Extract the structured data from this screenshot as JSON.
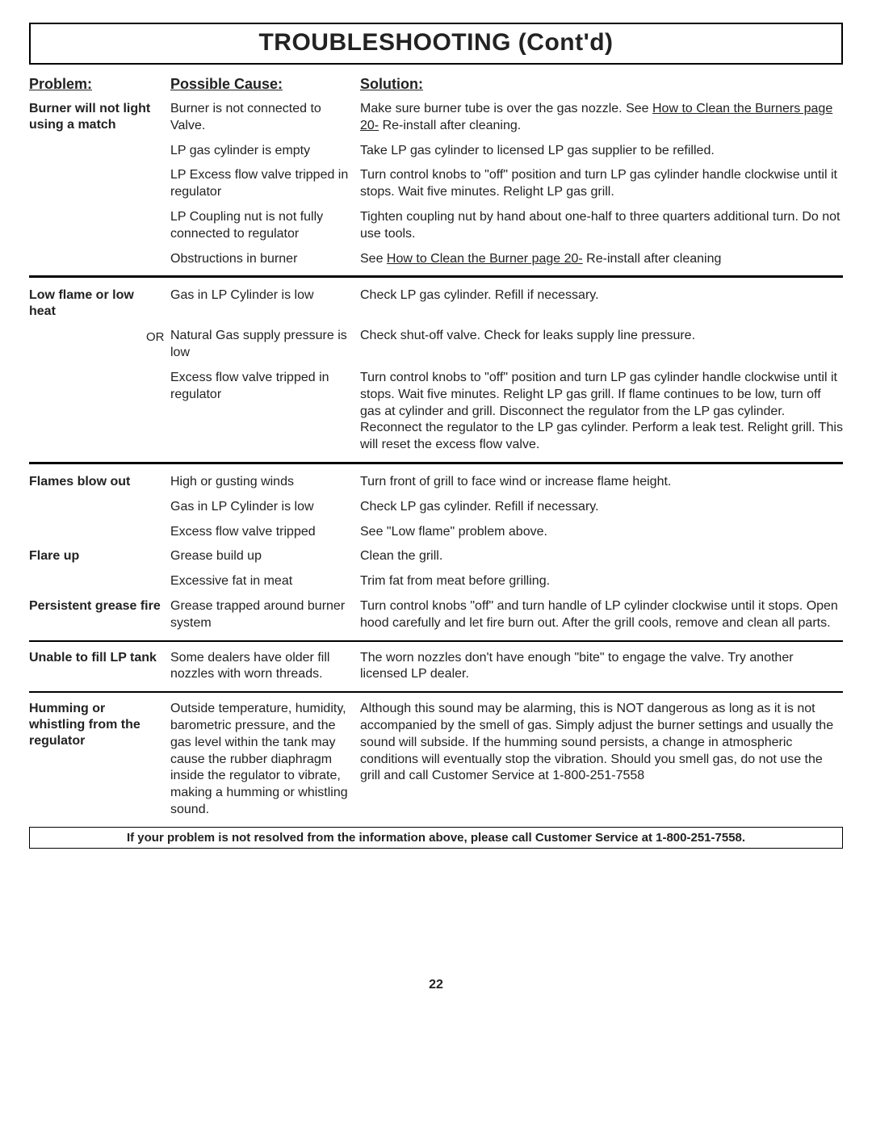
{
  "title": "TROUBLESHOOTING (Cont'd)",
  "headers": {
    "problem": "Problem:",
    "cause": "Possible Cause:",
    "solution": "Solution:"
  },
  "footer": "If your problem is not resolved from the information above, please call Customer Service at 1-800-251-7558.",
  "page_number": "22",
  "colors": {
    "text": "#222222",
    "border": "#000000",
    "background": "#ffffff"
  },
  "sections": [
    {
      "problem": "Burner will not light using a match",
      "divider_after": "thick",
      "rows": [
        {
          "cause": "Burner is not connected to Valve.",
          "solution_pre": "Make sure burner tube is over the gas nozzle. See ",
          "solution_link": "How to Clean the Burners page 20-",
          "solution_post": " Re-install after cleaning."
        },
        {
          "cause": "LP gas cylinder is empty",
          "solution": "Take LP gas cylinder to licensed LP gas supplier to be refilled."
        },
        {
          "cause": "LP Excess flow valve tripped in regulator",
          "solution": "Turn control knobs to \"off\" position and turn LP gas cylinder handle clockwise until it stops.  Wait five minutes.  Relight LP gas grill."
        },
        {
          "cause": "LP Coupling nut is not fully connected to regulator",
          "solution": "Tighten coupling nut by hand about one-half to three quarters additional turn. Do not use tools."
        },
        {
          "cause": "Obstructions in burner",
          "solution_pre": "See ",
          "solution_link": "How to Clean the Burner page 20-",
          "solution_post": " Re-install after cleaning"
        }
      ]
    },
    {
      "problem": "Low  flame\nor low  heat",
      "divider_after": "thick",
      "rows": [
        {
          "cause": "Gas in LP Cylinder is low",
          "solution": "Check LP gas cylinder. Refill if necessary."
        },
        {
          "or": "OR",
          "cause": "Natural Gas supply pressure is low",
          "solution": "Check shut-off valve. Check for leaks supply line pressure."
        },
        {
          "cause": "Excess flow valve tripped in regulator",
          "solution": "Turn control knobs to \"off\" position and turn LP gas cylinder handle clockwise until it stops.  Wait five minutes.  Relight LP gas grill. If flame continues to be low, turn off gas at cylinder and grill. Disconnect the regulator from the LP gas cylinder. Reconnect the regulator to the LP gas cylinder.  Perform a leak test. Relight grill. This will reset the excess flow valve."
        }
      ]
    },
    {
      "problem": "Flames blow out",
      "rows": [
        {
          "cause": "High or gusting winds",
          "solution": "Turn front of grill to face wind or increase flame height."
        },
        {
          "cause": "Gas in LP Cylinder is low",
          "solution": "Check LP gas cylinder. Refill if necessary."
        },
        {
          "cause": "Excess flow valve tripped",
          "solution": "See \"Low flame\" problem above."
        }
      ]
    },
    {
      "problem": "Flare up",
      "rows": [
        {
          "cause": "Grease build up",
          "solution": "Clean the grill."
        },
        {
          "cause": "Excessive fat in meat",
          "solution": "Trim fat from meat before grilling."
        }
      ]
    },
    {
      "problem": "Persistent grease fire",
      "divider_after": "thin",
      "rows": [
        {
          "cause": "Grease trapped around burner system",
          "solution": "Turn control knobs \"off\" and turn handle of LP cylinder clockwise until it stops.  Open hood carefully and let fire burn out. After the grill cools, remove and clean all parts."
        }
      ]
    },
    {
      "problem": "Unable to fill\nLP tank",
      "divider_after": "thin",
      "rows": [
        {
          "cause": "Some dealers have older fill nozzles with worn threads.",
          "solution": "The worn nozzles don't have enough \"bite\" to engage the valve. Try another licensed LP dealer."
        }
      ]
    },
    {
      "problem": "Humming or whistling   from  the regulator",
      "rows": [
        {
          "cause": "Outside temperature, humidity, barometric pressure, and the gas level within the tank may cause the rubber diaphragm inside the regulator to vibrate, making a humming or whistling sound.",
          "solution": "Although this sound may be alarming, this is NOT dangerous as long as it is not accompanied by the smell of gas. Simply adjust the burner settings and usually the sound will subside. If the humming sound persists, a change in atmospheric conditions will eventually stop the vibration. Should you smell gas, do not use the grill and call Customer Service at 1-800-251-7558"
        }
      ]
    }
  ]
}
